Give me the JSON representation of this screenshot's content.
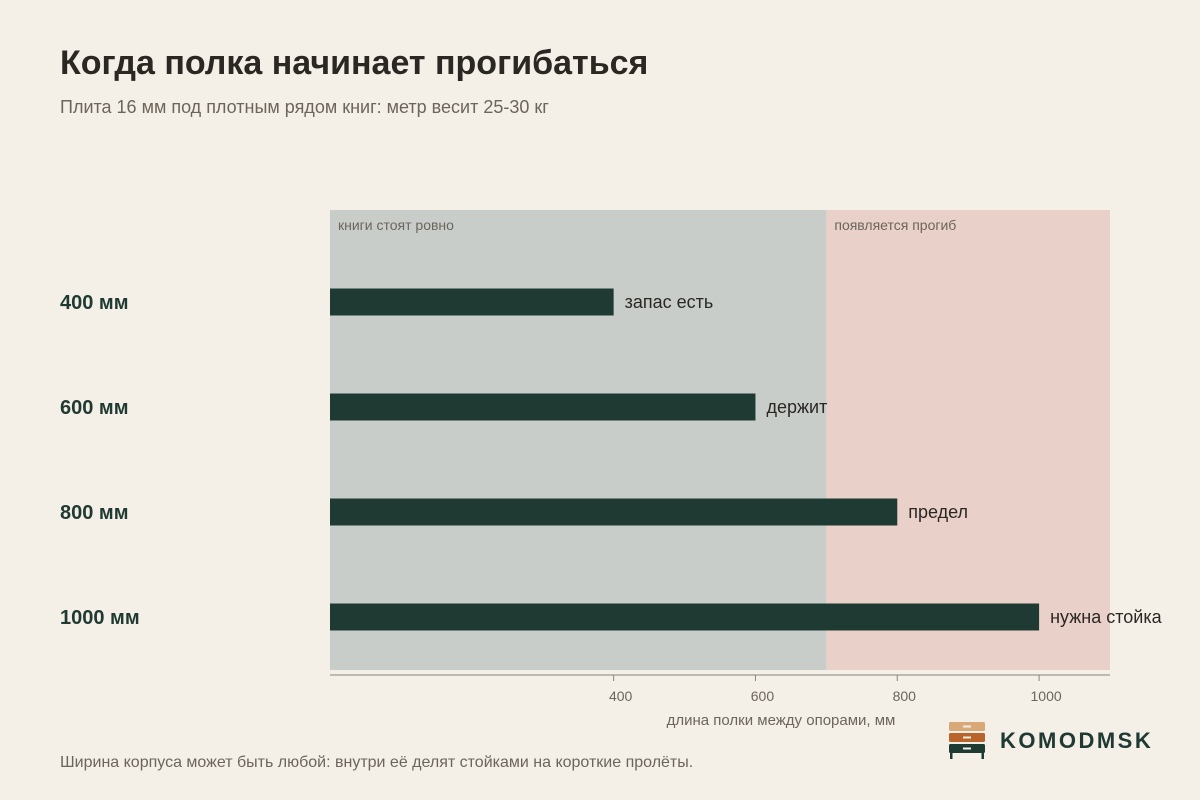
{
  "title": "Когда полка начинает прогибаться",
  "subtitle": "Плита 16 мм под плотным рядом книг: метр весит 25-30 кг",
  "footnote": "Ширина корпуса может быть любой: внутри её делят стойками на короткие пролёты.",
  "brand": {
    "name": "KOMODMSK",
    "logo_icon": "dresser-icon",
    "logo_colors": [
      "#d9a877",
      "#b8642a",
      "#1f3a32"
    ]
  },
  "colors": {
    "bar": "#1f3a32",
    "zone_ok": "#c8cdca",
    "zone_sag": "#e9d0c8",
    "category": "#1f3a32",
    "muted": "#6c655c"
  },
  "chart_data": {
    "type": "bar",
    "orientation": "horizontal",
    "categories": [
      "400 мм",
      "600 мм",
      "800 мм",
      "1000 мм"
    ],
    "values": [
      400,
      600,
      800,
      1000
    ],
    "bar_labels": [
      "запас есть",
      "держит",
      "предел",
      "нужна стойка"
    ],
    "xlabel": "длина полки между опорами, мм",
    "xlim": [
      0,
      1100
    ],
    "xticks": [
      400,
      600,
      800,
      1000
    ],
    "zones": [
      {
        "label": "книги стоят ровно",
        "from": 0,
        "to": 700
      },
      {
        "label": "появляется прогиб",
        "from": 700,
        "to": 1100
      }
    ],
    "grid": false,
    "legend": "none"
  }
}
